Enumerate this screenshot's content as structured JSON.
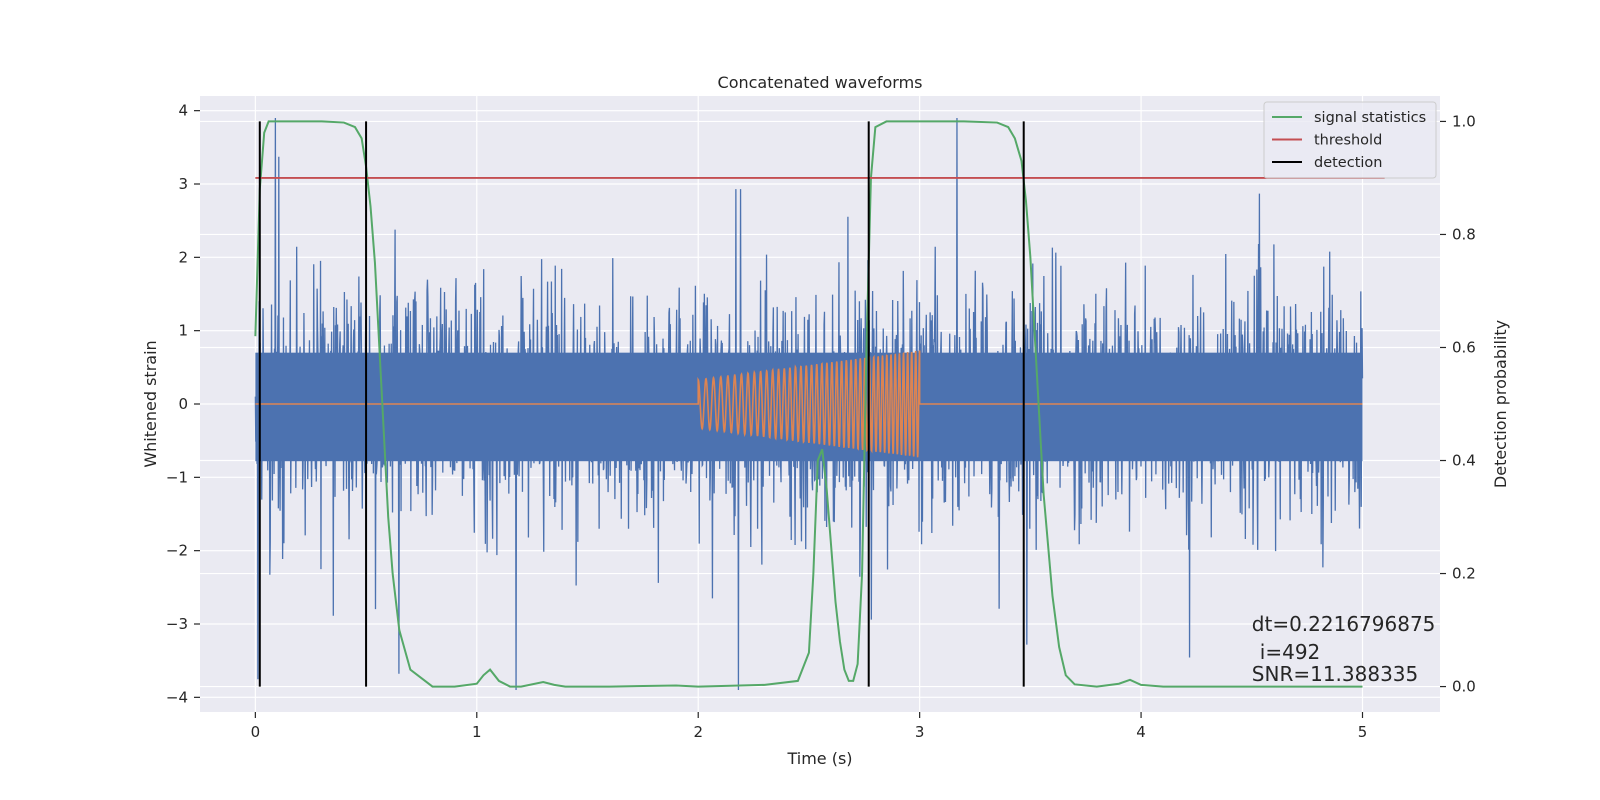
{
  "chart_data": {
    "type": "line",
    "title": "Concatenated waveforms",
    "xlabel": "Time (s)",
    "ylabel": "Whitened strain",
    "ylabel_right": "Detection probability",
    "xlim": [
      -0.25,
      5.35
    ],
    "ylim": [
      -4.2,
      4.2
    ],
    "ylim_right": [
      -0.045,
      1.045
    ],
    "x_ticks": [
      0,
      1,
      2,
      3,
      4,
      5
    ],
    "y_ticks": [
      -4,
      -3,
      -2,
      -1,
      0,
      1,
      2,
      3,
      4
    ],
    "y_ticks_right": [
      0.0,
      0.2,
      0.4,
      0.6,
      0.8,
      1.0
    ],
    "x_tick_labels": [
      "0",
      "1",
      "2",
      "3",
      "4",
      "5"
    ],
    "y_tick_labels": [
      "−4",
      "−3",
      "−2",
      "−1",
      "0",
      "1",
      "2",
      "3",
      "4"
    ],
    "y_tick_labels_right": [
      "0.0",
      "0.2",
      "0.4",
      "0.6",
      "0.8",
      "1.0"
    ],
    "grid": true,
    "legend_position": "top-right",
    "colors": {
      "background": "#eaeaf2",
      "grid": "#ffffff",
      "strain": "#4c72b0",
      "injected": "#dd8452",
      "signal_statistics": "#55a868",
      "threshold": "#c44e52",
      "detection": "#000000"
    },
    "series": [
      {
        "name": "signal statistics",
        "axis": "right",
        "x": [
          0.0,
          0.02,
          0.04,
          0.06,
          0.1,
          0.2,
          0.3,
          0.4,
          0.45,
          0.48,
          0.5,
          0.52,
          0.54,
          0.56,
          0.58,
          0.6,
          0.62,
          0.65,
          0.7,
          0.8,
          0.9,
          1.0,
          1.03,
          1.06,
          1.1,
          1.15,
          1.2,
          1.3,
          1.35,
          1.4,
          1.6,
          1.9,
          2.0,
          2.3,
          2.45,
          2.5,
          2.52,
          2.54,
          2.56,
          2.58,
          2.6,
          2.62,
          2.64,
          2.66,
          2.68,
          2.7,
          2.72,
          2.74,
          2.76,
          2.78,
          2.8,
          2.85,
          2.9,
          3.0,
          3.2,
          3.35,
          3.4,
          3.43,
          3.46,
          3.48,
          3.5,
          3.52,
          3.54,
          3.56,
          3.6,
          3.63,
          3.66,
          3.7,
          3.8,
          3.9,
          3.95,
          4.0,
          4.1,
          4.5,
          5.0
        ],
        "values": [
          0.62,
          0.88,
          0.98,
          1.0,
          1.0,
          1.0,
          1.0,
          0.998,
          0.99,
          0.97,
          0.92,
          0.85,
          0.75,
          0.6,
          0.45,
          0.3,
          0.2,
          0.1,
          0.03,
          0.0,
          0.0,
          0.005,
          0.02,
          0.03,
          0.01,
          0.0,
          0.0,
          0.008,
          0.003,
          0.0,
          0.0,
          0.002,
          0.0,
          0.003,
          0.01,
          0.06,
          0.2,
          0.4,
          0.42,
          0.35,
          0.25,
          0.15,
          0.08,
          0.03,
          0.01,
          0.01,
          0.04,
          0.2,
          0.6,
          0.9,
          0.99,
          1.0,
          1.0,
          1.0,
          1.0,
          0.998,
          0.99,
          0.97,
          0.93,
          0.86,
          0.76,
          0.62,
          0.48,
          0.34,
          0.16,
          0.07,
          0.02,
          0.004,
          0.0,
          0.005,
          0.012,
          0.003,
          0.0,
          0.0,
          0.0
        ]
      },
      {
        "name": "threshold",
        "axis": "right",
        "x": [
          0.0,
          5.1
        ],
        "values": [
          0.9,
          0.9
        ]
      },
      {
        "name": "detection",
        "axis": "right",
        "type": "vlines",
        "x": [
          0.02,
          0.5,
          2.77,
          3.47
        ],
        "ymin": 0.0,
        "ymax": 1.0
      }
    ],
    "annotation": {
      "dt_line": "dt=0.2216796875",
      "i_line": "i=492",
      "snr_line": "SNR=11.388335",
      "x": 4.5,
      "y_dt": -3.0,
      "y_i": -3.38,
      "y_snr": -3.68
    }
  }
}
